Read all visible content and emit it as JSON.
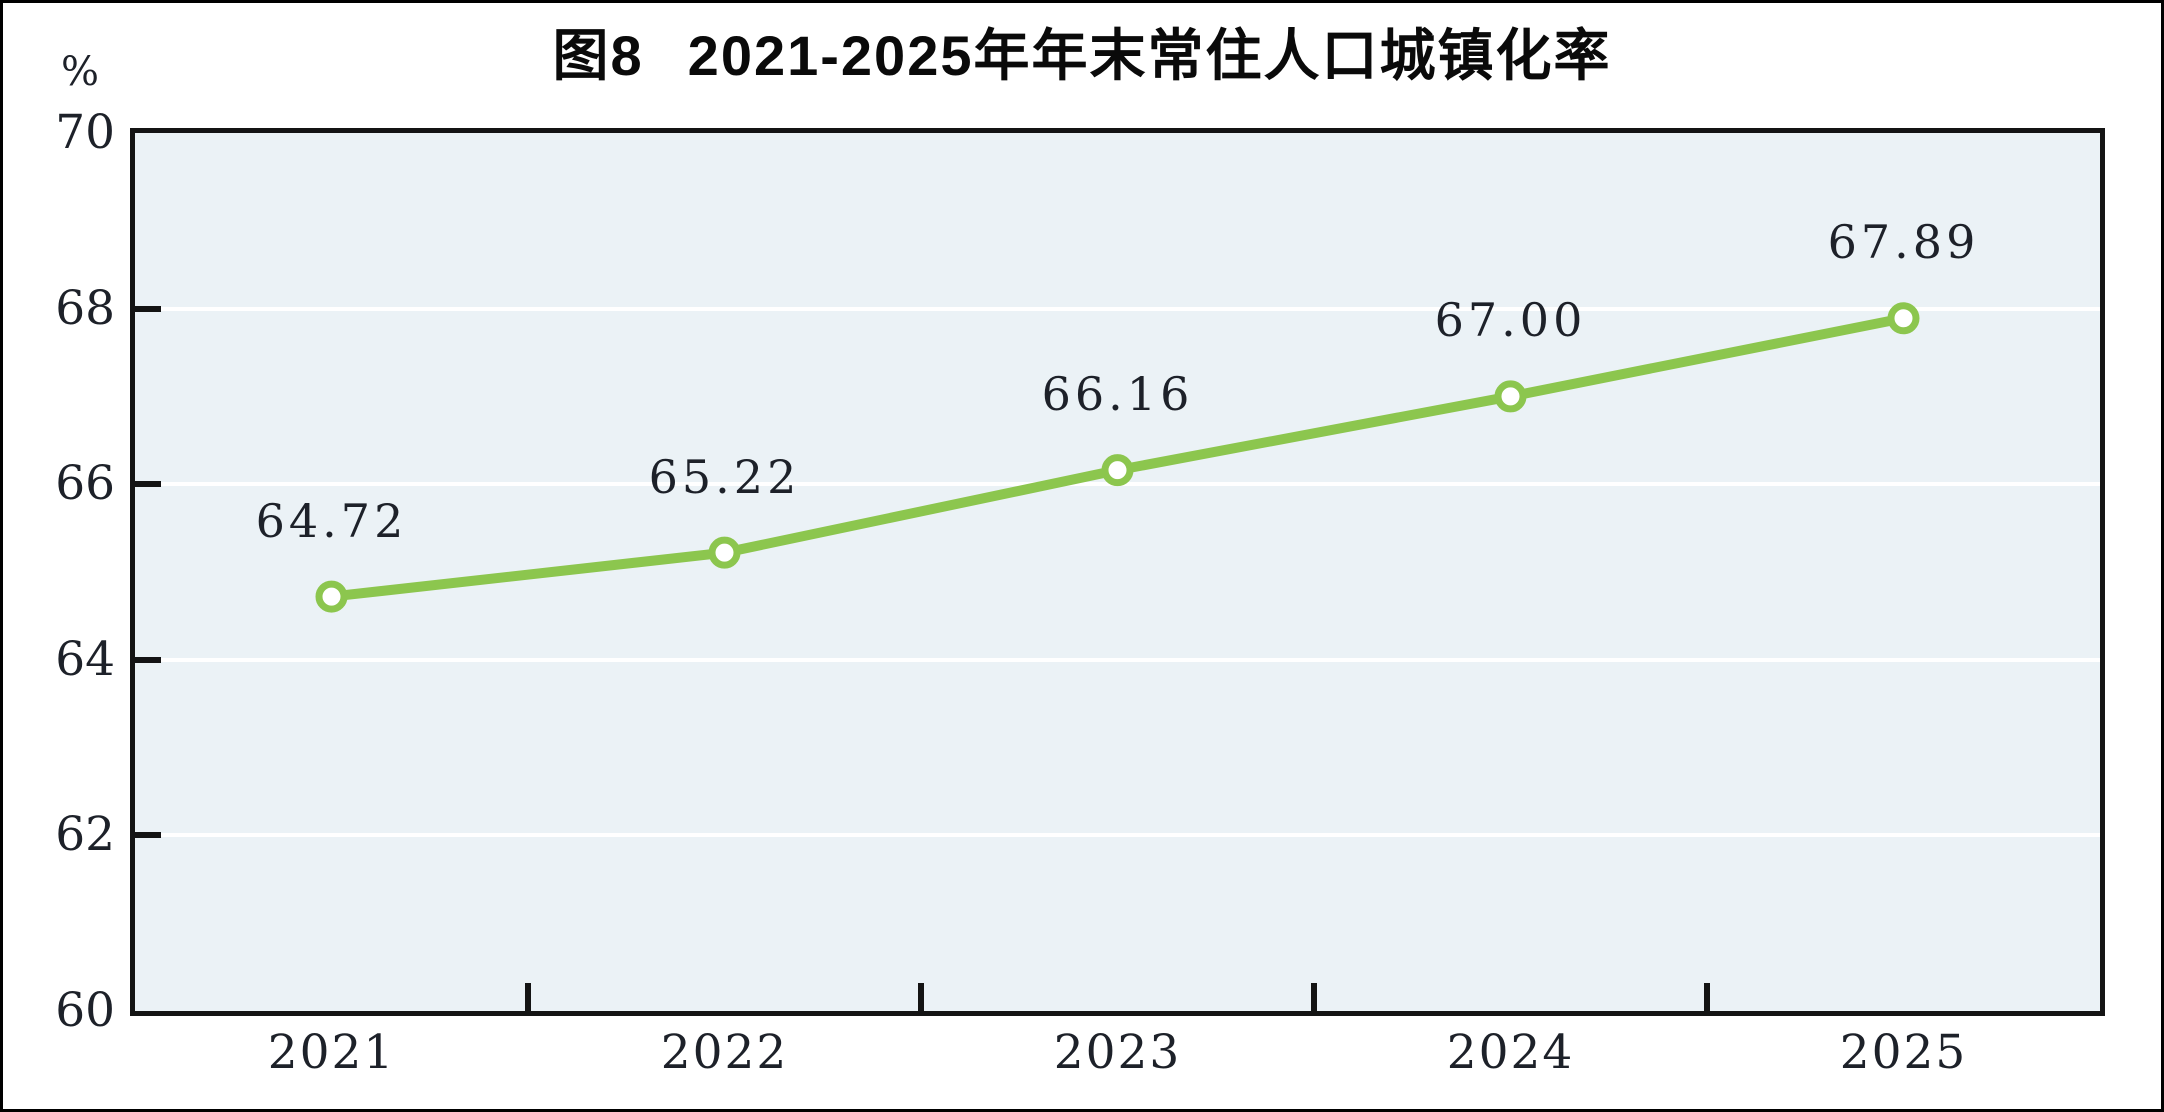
{
  "header": {
    "figure_label": "图8",
    "title": "2021-2025年年末常住人口城镇化率"
  },
  "chart_data": {
    "type": "line",
    "title": "图8 2021-2025年年末常住人口城镇化率",
    "categories": [
      "2021",
      "2022",
      "2023",
      "2024",
      "2025"
    ],
    "values": [
      64.72,
      65.22,
      66.16,
      67.0,
      67.89
    ],
    "point_labels": [
      "64.72",
      "65.22",
      "66.16",
      "67.00",
      "67.89"
    ],
    "y_unit": "%",
    "ylim": [
      60,
      70
    ],
    "y_ticks": [
      70,
      68,
      66,
      64,
      62,
      60
    ],
    "grid": "horizontal-white-lines-at-62-64-66-68",
    "legend": "none",
    "colors": {
      "line": "#8cc64e",
      "marker_fill": "#ffffff",
      "plot_background": "#ebf2f6",
      "gridline": "#ffffff",
      "axis": "#141414",
      "text": "#1d2129"
    }
  }
}
